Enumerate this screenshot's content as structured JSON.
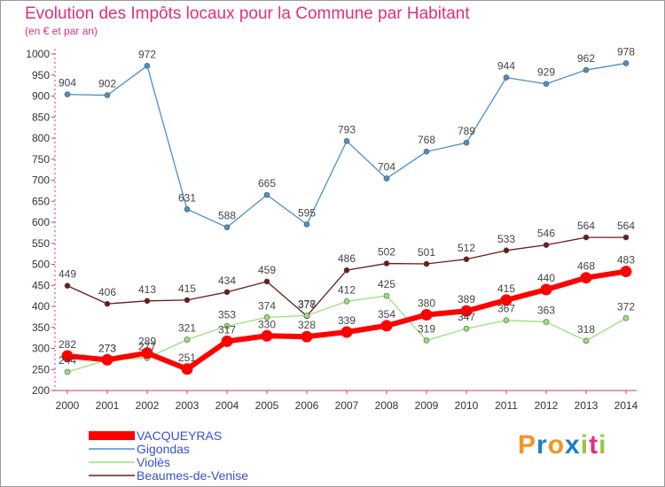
{
  "title": "Evolution des Impôts locaux pour la Commune par Habitant",
  "subtitle": "(en € et par an)",
  "logo": {
    "text": "Proxiti",
    "letters": [
      "P",
      "r",
      "o",
      "x",
      "i",
      "t",
      "i"
    ],
    "colors": [
      "#f7931e",
      "#1c7fc4",
      "#f7931e",
      "#1c7fc4",
      "#9bc53d",
      "#e0307a",
      "#9bc53d"
    ]
  },
  "chart_data": {
    "type": "line",
    "title": "Evolution des Impôts locaux pour la Commune par Habitant",
    "subtitle": "(en € et par an)",
    "x": [
      2000,
      2001,
      2002,
      2003,
      2004,
      2005,
      2006,
      2007,
      2008,
      2009,
      2010,
      2011,
      2012,
      2013,
      2014
    ],
    "ylim": [
      200,
      1000
    ],
    "yticks": [
      200,
      250,
      300,
      350,
      400,
      450,
      500,
      550,
      600,
      650,
      700,
      750,
      800,
      850,
      900,
      950,
      1000
    ],
    "grid": false,
    "legend_position": "bottom-left",
    "series": [
      {
        "name": "Gigondas",
        "color": "#4a90c8",
        "width": 1.3,
        "marker": 3,
        "values": [
          904,
          902,
          972,
          631,
          588,
          665,
          595,
          793,
          704,
          768,
          789,
          944,
          929,
          962,
          978
        ]
      },
      {
        "name": "Beaumes-de-Venise",
        "color": "#6b1a1a",
        "width": 1.3,
        "marker": 3,
        "values": [
          449,
          406,
          413,
          415,
          434,
          459,
          377,
          486,
          502,
          501,
          512,
          533,
          546,
          564,
          564
        ]
      },
      {
        "name": "Violès",
        "color": "#99e07a",
        "width": 1.3,
        "marker": 3,
        "values": [
          244,
          273,
          277,
          321,
          353,
          374,
          378,
          412,
          425,
          319,
          347,
          367,
          363,
          318,
          372
        ]
      },
      {
        "name": "VACQUEYRAS",
        "color": "#ff0000",
        "width": 6,
        "marker": 6.5,
        "values": [
          282,
          273,
          289,
          251,
          317,
          330,
          328,
          339,
          354,
          380,
          389,
          415,
          440,
          468,
          483
        ]
      }
    ],
    "legend_order": [
      "VACQUEYRAS",
      "Gigondas",
      "Violès",
      "Beaumes-de-Venise"
    ]
  }
}
